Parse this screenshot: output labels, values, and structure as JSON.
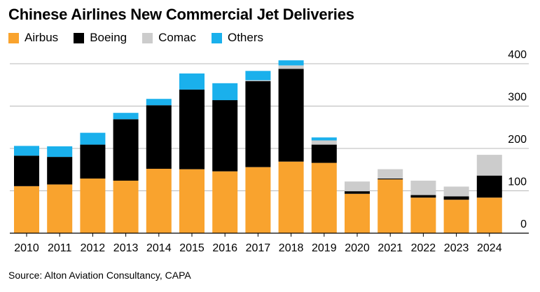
{
  "header": {
    "title": "Chinese Airlines New Commercial Jet Deliveries"
  },
  "legend": [
    {
      "name": "Airbus",
      "color": "#F9A32E"
    },
    {
      "name": "Boeing",
      "color": "#000000"
    },
    {
      "name": "Comac",
      "color": "#CCCCCC"
    },
    {
      "name": "Others",
      "color": "#1AB0EC"
    }
  ],
  "footer": {
    "source": "Source: Alton Aviation Consultancy, CAPA"
  },
  "chart_data": {
    "type": "bar",
    "stacked": true,
    "title": "Chinese Airlines New Commercial Jet Deliveries",
    "categories": [
      "2010",
      "2011",
      "2012",
      "2013",
      "2014",
      "2015",
      "2016",
      "2017",
      "2018",
      "2019",
      "2020",
      "2021",
      "2022",
      "2023",
      "2024"
    ],
    "series": [
      {
        "name": "Airbus",
        "color": "#F9A32E",
        "values": [
          111,
          115,
          129,
          124,
          152,
          151,
          146,
          156,
          169,
          166,
          93,
          127,
          84,
          79,
          84
        ]
      },
      {
        "name": "Boeing",
        "color": "#000000",
        "values": [
          72,
          65,
          80,
          145,
          150,
          188,
          168,
          203,
          219,
          43,
          6,
          2,
          6,
          8,
          52
        ]
      },
      {
        "name": "Comac",
        "color": "#CCCCCC",
        "values": [
          0,
          0,
          0,
          0,
          0,
          0,
          0,
          2,
          8,
          10,
          23,
          22,
          34,
          23,
          49
        ]
      },
      {
        "name": "Others",
        "color": "#1AB0EC",
        "values": [
          23,
          25,
          28,
          15,
          15,
          38,
          40,
          22,
          12,
          7,
          0,
          0,
          0,
          0,
          0
        ]
      }
    ],
    "ylim": [
      0,
      400
    ],
    "yticks": [
      0,
      100,
      200,
      300,
      400
    ],
    "ytick_labels": [
      "0",
      "100",
      "200",
      "300",
      "400"
    ],
    "y_axis_side": "right",
    "grid": true,
    "legend_position": "top-left",
    "xlabel": "",
    "ylabel": ""
  }
}
